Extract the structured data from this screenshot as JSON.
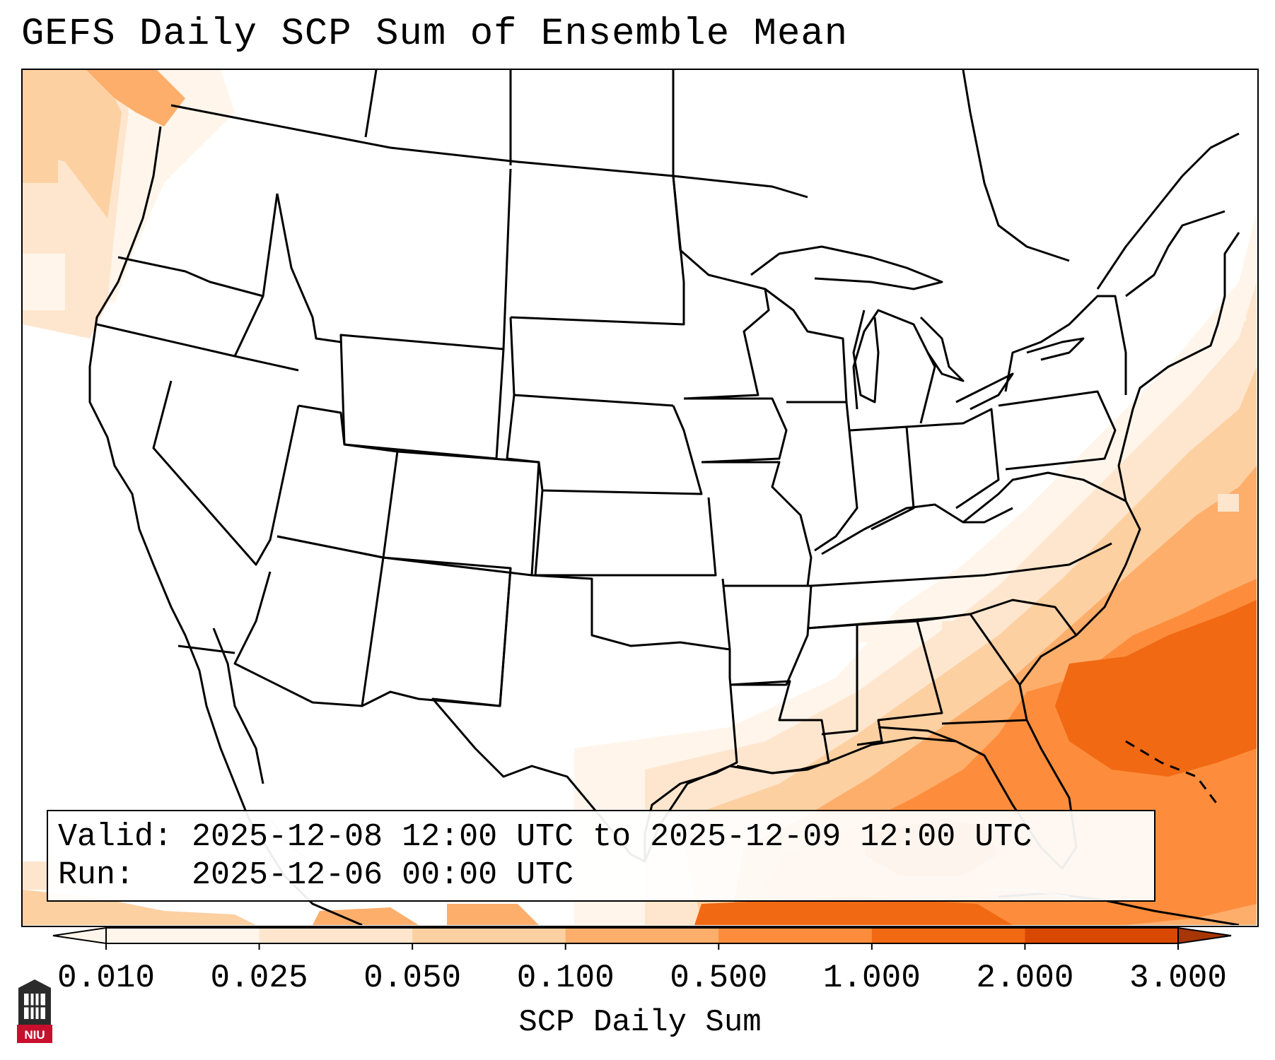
{
  "title": "GEFS Daily SCP Sum of Ensemble Mean",
  "info": {
    "valid_label": "Valid:",
    "valid_value": "2025-12-08 12:00 UTC to 2025-12-09 12:00 UTC",
    "run_label": "Run:",
    "run_value": "2025-12-06 00:00 UTC"
  },
  "colorbar": {
    "label": "SCP Daily Sum",
    "ticks": [
      "0.010",
      "0.025",
      "0.050",
      "0.100",
      "0.500",
      "1.000",
      "2.000",
      "3.000"
    ],
    "colors": [
      "#fff5eb",
      "#fee6ce",
      "#fdd0a2",
      "#fdae6b",
      "#fd8d3c",
      "#f16913",
      "#d94801",
      "#a63603"
    ],
    "extend": "both"
  },
  "logo": {
    "text": "NIU",
    "color": "#c8102e"
  },
  "colors": {
    "shade_lightest": "#fff5eb",
    "shade_light": "#fee6ce",
    "shade_mid": "#fdd0a2",
    "shade_orange": "#fdae6b",
    "shade_dark": "#fd8d3c",
    "shade_darker": "#f16913"
  }
}
